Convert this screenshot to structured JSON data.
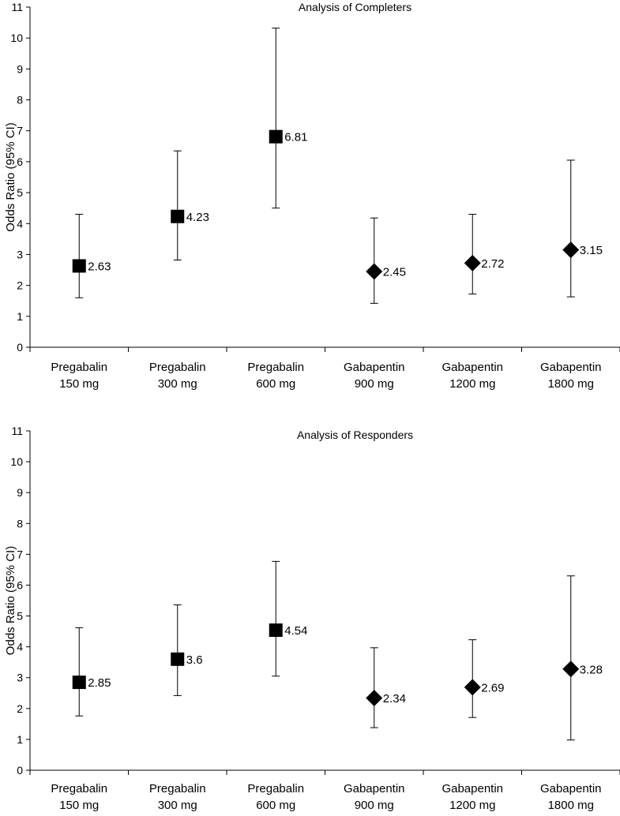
{
  "chart_data": [
    {
      "type": "scatter",
      "title": "Analysis of Completers",
      "xlabel": "",
      "ylabel": "Odds Ratio (95% CI)",
      "ylim": [
        0,
        11
      ],
      "yticks": [
        0,
        1,
        2,
        3,
        4,
        5,
        6,
        7,
        8,
        9,
        10,
        11
      ],
      "grid": false,
      "legend": "none",
      "categories": [
        {
          "line1": "Pregabalin",
          "line2": "150 mg"
        },
        {
          "line1": "Pregabalin",
          "line2": "300 mg"
        },
        {
          "line1": "Pregabalin",
          "line2": "600 mg"
        },
        {
          "line1": "Gabapentin",
          "line2": "900 mg"
        },
        {
          "line1": "Gabapentin",
          "line2": "1200 mg"
        },
        {
          "line1": "Gabapentin",
          "line2": "1800 mg"
        }
      ],
      "points": [
        {
          "value": 2.63,
          "lower": 1.6,
          "upper": 4.3,
          "marker": "square",
          "label": "2.63"
        },
        {
          "value": 4.23,
          "lower": 2.82,
          "upper": 6.35,
          "marker": "square",
          "label": "4.23"
        },
        {
          "value": 6.81,
          "lower": 4.5,
          "upper": 10.32,
          "marker": "square",
          "label": "6.81"
        },
        {
          "value": 2.45,
          "lower": 1.42,
          "upper": 4.18,
          "marker": "diamond",
          "label": "2.45"
        },
        {
          "value": 2.72,
          "lower": 1.72,
          "upper": 4.3,
          "marker": "diamond",
          "label": "2.72"
        },
        {
          "value": 3.15,
          "lower": 1.63,
          "upper": 6.05,
          "marker": "diamond",
          "label": "3.15"
        }
      ]
    },
    {
      "type": "scatter",
      "title": "Analysis of Responders",
      "xlabel": "",
      "ylabel": "Odds Ratio (95% CI)",
      "ylim": [
        0,
        11
      ],
      "yticks": [
        0,
        1,
        2,
        3,
        4,
        5,
        6,
        7,
        8,
        9,
        10,
        11
      ],
      "grid": false,
      "legend": "none",
      "categories": [
        {
          "line1": "Pregabalin",
          "line2": "150 mg"
        },
        {
          "line1": "Pregabalin",
          "line2": "300 mg"
        },
        {
          "line1": "Pregabalin",
          "line2": "600 mg"
        },
        {
          "line1": "Gabapentin",
          "line2": "900 mg"
        },
        {
          "line1": "Gabapentin",
          "line2": "1200 mg"
        },
        {
          "line1": "Gabapentin",
          "line2": "1800 mg"
        }
      ],
      "points": [
        {
          "value": 2.85,
          "lower": 1.76,
          "upper": 4.62,
          "marker": "square",
          "label": "2.85"
        },
        {
          "value": 3.6,
          "lower": 2.42,
          "upper": 5.36,
          "marker": "square",
          "label": "3.6"
        },
        {
          "value": 4.54,
          "lower": 3.05,
          "upper": 6.77,
          "marker": "square",
          "label": "4.54"
        },
        {
          "value": 2.34,
          "lower": 1.38,
          "upper": 3.97,
          "marker": "diamond",
          "label": "2.34"
        },
        {
          "value": 2.69,
          "lower": 1.71,
          "upper": 4.23,
          "marker": "diamond",
          "label": "2.69"
        },
        {
          "value": 3.28,
          "lower": 0.98,
          "upper": 6.3,
          "marker": "diamond",
          "label": "3.28"
        }
      ]
    }
  ],
  "colors": {
    "ink": "#000000",
    "background": "#ffffff"
  }
}
